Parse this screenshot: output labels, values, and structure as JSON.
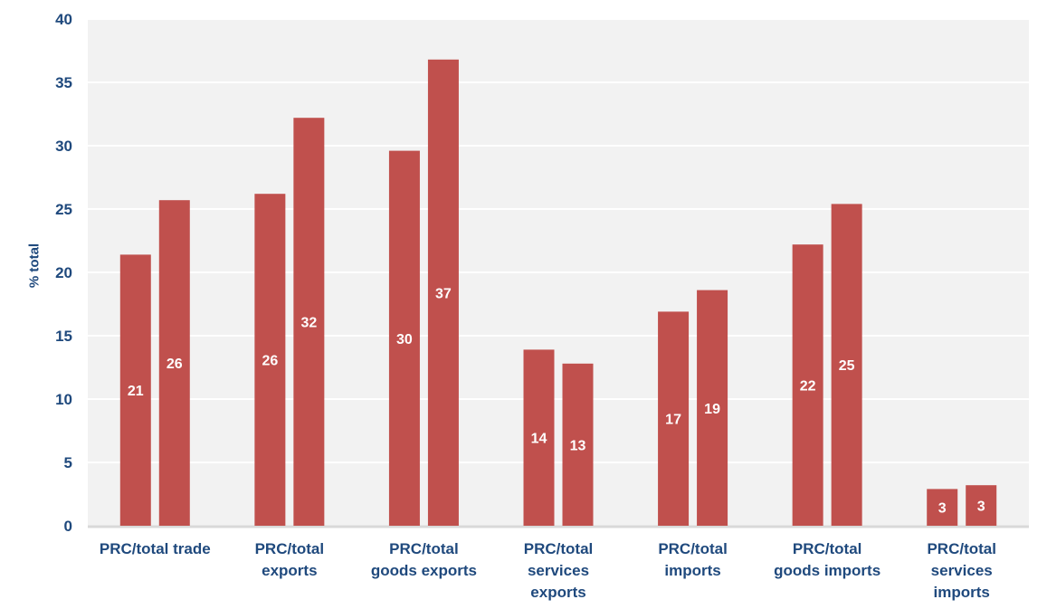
{
  "chart_data": {
    "type": "bar",
    "title": "",
    "xlabel": "",
    "ylabel": "% total",
    "ylim": [
      0,
      40
    ],
    "yticks": [
      0,
      5,
      10,
      15,
      20,
      25,
      30,
      35,
      40
    ],
    "grid": true,
    "categories": [
      "PRC/total trade",
      "PRC/total\nexports",
      "PRC/total\ngoods exports",
      "PRC/total\nservices\nexports",
      "PRC/total\nimports",
      "PRC/total\ngoods imports",
      "PRC/total\nservices\nimports"
    ],
    "series": [
      {
        "name": "Series 1",
        "values": [
          21.4,
          26.2,
          29.6,
          13.9,
          16.9,
          22.2,
          2.9
        ],
        "labels": [
          "21",
          "26",
          "30",
          "14",
          "17",
          "22",
          "3"
        ]
      },
      {
        "name": "Series 2",
        "values": [
          25.7,
          32.2,
          36.8,
          12.8,
          18.6,
          25.4,
          3.2
        ],
        "labels": [
          "26",
          "32",
          "37",
          "13",
          "19",
          "25",
          "3"
        ]
      }
    ],
    "colors": {
      "bar": "#C0504D",
      "plot_bg": "#F2F2F2",
      "text": "#1F497D",
      "grid": "#FFFFFF"
    }
  }
}
